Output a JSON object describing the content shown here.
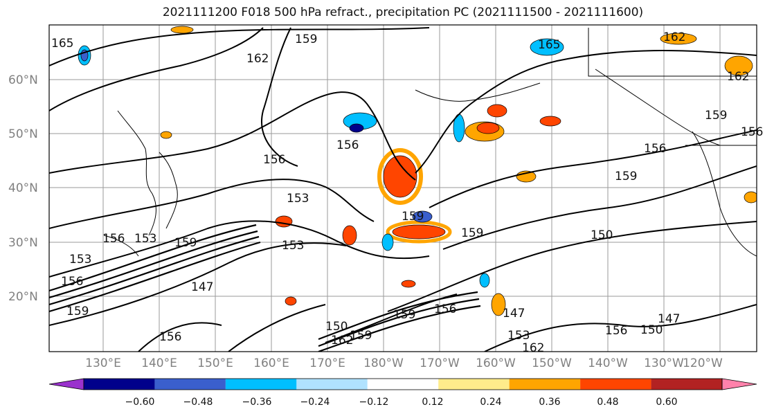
{
  "title": "2021111200 F018 500 hPa refract., precipitation PC (2021111500 - 2021111600)",
  "lat_labels": [
    "60°N",
    "50°N",
    "40°N",
    "30°N",
    "20°N"
  ],
  "lon_labels": [
    "130°E",
    "140°E",
    "150°E",
    "160°E",
    "170°E",
    "180°W",
    "170°W",
    "160°W",
    "150°W",
    "140°W",
    "130°W",
    "120°W"
  ],
  "colorbar": {
    "labels": [
      "−0.60",
      "−0.48",
      "−0.36",
      "−0.24",
      "−0.12",
      "0.12",
      "0.24",
      "0.36",
      "0.48",
      "0.60"
    ],
    "colors": [
      "#9a32cd",
      "#00008b",
      "#3a5fcd",
      "#00bfff",
      "#b0e2ff",
      "#ffffff",
      "#ffec8b",
      "#ffa500",
      "#ff4500",
      "#b22222",
      "#ff82ab"
    ]
  },
  "contour_labels": [
    "165",
    "162",
    "159",
    "165",
    "162",
    "156",
    "156",
    "153",
    "153",
    "159",
    "153",
    "159",
    "150",
    "159",
    "156",
    "147",
    "156",
    "159",
    "153",
    "162",
    "159",
    "156",
    "150",
    "147",
    "156",
    "156",
    "162",
    "159",
    "153",
    "162",
    "156",
    "147",
    "159",
    "156",
    "159",
    "150"
  ]
}
